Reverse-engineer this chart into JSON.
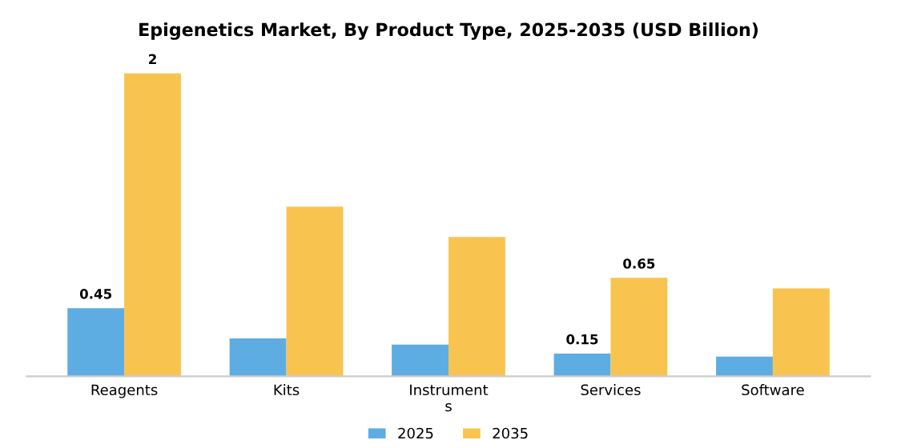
{
  "chart_data": {
    "type": "bar",
    "title": "Epigenetics Market, By Product Type, 2025-2035 (USD Billion)",
    "categories": [
      "Reagents",
      "Kits",
      "Instrument\ns",
      "Services",
      "Software"
    ],
    "series": [
      {
        "name": "2025",
        "color": "#5dade2",
        "values": [
          0.45,
          0.25,
          0.21,
          0.15,
          0.13
        ],
        "value_labels": [
          "0.45",
          null,
          null,
          "0.15",
          null
        ]
      },
      {
        "name": "2035",
        "color": "#f8c44f",
        "values": [
          2,
          1.12,
          0.92,
          0.65,
          0.58
        ],
        "value_labels": [
          "2",
          null,
          null,
          "0.65",
          null
        ]
      }
    ],
    "legend": "bottom",
    "tick_labels": "x"
  }
}
